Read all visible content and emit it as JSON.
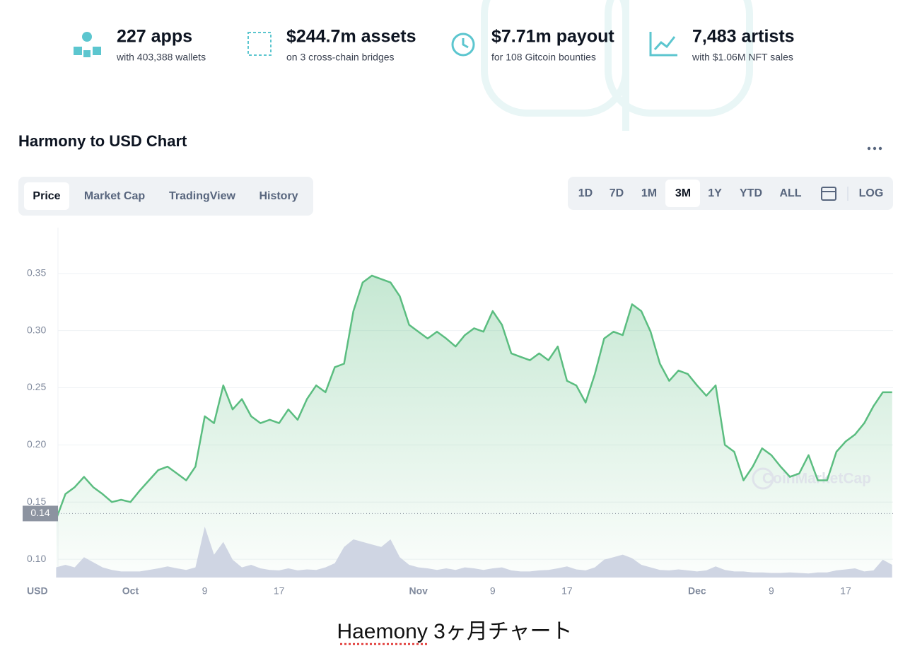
{
  "stats": [
    {
      "title": "227 apps",
      "subtitle": "with 403,388 wallets"
    },
    {
      "title": "$244.7m assets",
      "subtitle": "on 3 cross-chain bridges"
    },
    {
      "title": "$7.71m payout",
      "subtitle": "for 108 Gitcoin bounties"
    },
    {
      "title": "7,483 artists",
      "subtitle": "with $1.06M NFT sales"
    }
  ],
  "chart_title": "Harmony to USD Chart",
  "tabs": [
    "Price",
    "Market Cap",
    "TradingView",
    "History"
  ],
  "ranges": [
    "1D",
    "7D",
    "1M",
    "3M",
    "1Y",
    "YTD",
    "ALL"
  ],
  "log_button": "LOG",
  "chart_data": {
    "type": "line",
    "color": "#5bbd80",
    "grid": true,
    "x": [
      -8,
      -7,
      -6,
      -5,
      -4,
      -3,
      -2,
      -1,
      0,
      1,
      2,
      3,
      4,
      5,
      6,
      7,
      8,
      9,
      10,
      11,
      12,
      13,
      14,
      15,
      16,
      17,
      18,
      19,
      20,
      21,
      22,
      23,
      24,
      25,
      26,
      27,
      28,
      29,
      30,
      31,
      32,
      33,
      34,
      35,
      36,
      37,
      38,
      39,
      40,
      41,
      42,
      43,
      44,
      45,
      46,
      47,
      48,
      49,
      50,
      51,
      52,
      53,
      54,
      55,
      56,
      57,
      58,
      59,
      60,
      61,
      62,
      63,
      64,
      65,
      66,
      67,
      68,
      69,
      70,
      71,
      72,
      73,
      74,
      75,
      76,
      77,
      78,
      79,
      80,
      81,
      82
    ],
    "values": [
      0.135,
      0.157,
      0.163,
      0.172,
      0.163,
      0.157,
      0.15,
      0.152,
      0.15,
      0.16,
      0.169,
      0.178,
      0.181,
      0.175,
      0.169,
      0.181,
      0.225,
      0.219,
      0.252,
      0.231,
      0.24,
      0.225,
      0.219,
      0.222,
      0.219,
      0.231,
      0.222,
      0.24,
      0.252,
      0.246,
      0.268,
      0.271,
      0.317,
      0.342,
      0.348,
      0.345,
      0.342,
      0.33,
      0.305,
      0.299,
      0.293,
      0.299,
      0.293,
      0.286,
      0.296,
      0.302,
      0.299,
      0.317,
      0.305,
      0.28,
      0.277,
      0.274,
      0.28,
      0.274,
      0.286,
      0.256,
      0.252,
      0.237,
      0.262,
      0.293,
      0.299,
      0.296,
      0.323,
      0.317,
      0.299,
      0.271,
      0.256,
      0.265,
      0.262,
      0.252,
      0.243,
      0.252,
      0.2,
      0.194,
      0.169,
      0.181,
      0.197,
      0.191,
      0.181,
      0.172,
      0.175,
      0.191,
      0.169,
      0.169,
      0.194,
      0.203,
      0.209,
      0.219,
      0.234,
      0.246,
      0.246
    ],
    "volume": [
      20,
      25,
      20,
      40,
      30,
      20,
      15,
      12,
      12,
      12,
      15,
      18,
      22,
      18,
      15,
      20,
      100,
      45,
      70,
      35,
      20,
      25,
      18,
      15,
      14,
      18,
      14,
      16,
      15,
      20,
      28,
      60,
      75,
      70,
      65,
      60,
      75,
      40,
      25,
      20,
      18,
      15,
      18,
      15,
      20,
      18,
      15,
      18,
      20,
      14,
      12,
      12,
      14,
      15,
      18,
      22,
      16,
      14,
      20,
      35,
      40,
      45,
      38,
      25,
      20,
      15,
      14,
      16,
      14,
      12,
      14,
      22,
      15,
      12,
      12,
      10,
      10,
      9,
      9,
      10,
      9,
      8,
      10,
      10,
      14,
      16,
      18,
      12,
      14,
      35,
      25
    ],
    "volume_lim": [
      0,
      100
    ],
    "volume_color": "#cfd5e3",
    "xlim": [
      -7.8,
      82.1
    ],
    "xticks": [
      {
        "value": 0,
        "label": "Oct"
      },
      {
        "value": 8,
        "label": "9"
      },
      {
        "value": 16,
        "label": "17"
      },
      {
        "value": 31,
        "label": "Nov"
      },
      {
        "value": 39,
        "label": "9"
      },
      {
        "value": 47,
        "label": "17"
      },
      {
        "value": 61,
        "label": "Dec"
      },
      {
        "value": 69,
        "label": "9"
      },
      {
        "value": 77,
        "label": "17"
      }
    ],
    "ylim": [
      0.084,
      0.39
    ],
    "yticks": [
      {
        "value": 0.1,
        "label": "0.10"
      },
      0.15,
      {
        "value": 0.2,
        "label": "0.20"
      },
      0.25,
      {
        "value": 0.3,
        "label": "0.30"
      },
      0.35
    ],
    "y_unit": "USD",
    "current_price": 0.14,
    "watermark": "CoinMarketCap"
  },
  "caption": "Haemony 3ヶ月チャート"
}
